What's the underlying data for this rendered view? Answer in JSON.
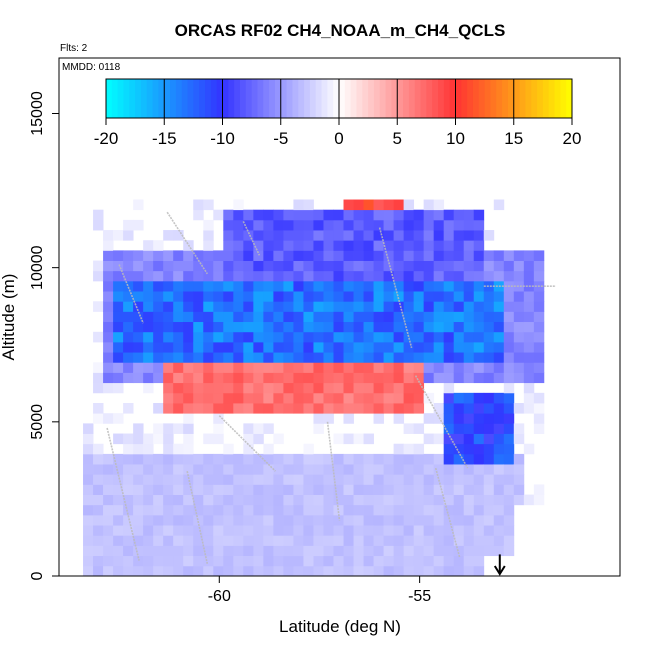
{
  "chart_data": {
    "type": "heatmap",
    "title": "ORCAS RF02 CH4_NOAA_m_CH4_QCLS",
    "subtitle_flights": "Flts: 2",
    "subtitle_date": "MMDD: 0118",
    "xlabel": "Latitude (deg N)",
    "ylabel": "Altitude (m)",
    "xlim": [
      -64.0,
      -50.0
    ],
    "ylim": [
      0,
      16800
    ],
    "x_ticks": [
      -60,
      -55
    ],
    "x_tick_labels": [
      "-60",
      "-55"
    ],
    "y_ticks": [
      0,
      5000,
      10000,
      15000
    ],
    "y_tick_labels": [
      "0",
      "5000",
      "10000",
      "15000"
    ],
    "colorbar": {
      "min": -20,
      "max": 20,
      "ticks": [
        -20,
        -15,
        -10,
        -5,
        0,
        5,
        10,
        15,
        20
      ],
      "tick_labels": [
        "-20",
        "-15",
        "-10",
        "-5",
        "0",
        "5",
        "10",
        "15",
        "20"
      ],
      "colors": {
        "neg_max": "#00ffff",
        "neg_mid": "#3333ff",
        "zero": "#ffffff",
        "pos_mid": "#ff3333",
        "pos_max": "#ffff00"
      }
    },
    "grid": {
      "lat_start": -63.4,
      "lat_step": 0.25,
      "alt_start": 0,
      "alt_step": 330
    },
    "regions": [
      {
        "name": "upper-negative-band",
        "lat": [
          -62.7,
          -52.8
        ],
        "alt": [
          6800,
          9600
        ],
        "value": -13
      },
      {
        "name": "upper-negative-fringe",
        "lat": [
          -63.0,
          -51.5
        ],
        "alt": [
          6200,
          10500
        ],
        "value": -6
      },
      {
        "name": "top-negative-wedge",
        "lat": [
          -60.0,
          -53.5
        ],
        "alt": [
          9600,
          12000
        ],
        "value": -8
      },
      {
        "name": "mid-positive-band",
        "lat": [
          -61.3,
          -55.0
        ],
        "alt": [
          5400,
          6800
        ],
        "value": 7
      },
      {
        "name": "right-negative-patch",
        "lat": [
          -54.5,
          -52.6
        ],
        "alt": [
          3500,
          5800
        ],
        "value": -11
      },
      {
        "name": "lower-light-negative",
        "lat": [
          -63.3,
          -52.5
        ],
        "alt": [
          0,
          4000
        ],
        "value": -3
      },
      {
        "name": "top-positive-spots",
        "lat": [
          -57.0,
          -55.5
        ],
        "alt": [
          11900,
          12300
        ],
        "value": 10
      }
    ],
    "annotation": {
      "type": "arrow-down",
      "lat": -53.0,
      "alt_from": 700,
      "alt_to": 0
    }
  }
}
